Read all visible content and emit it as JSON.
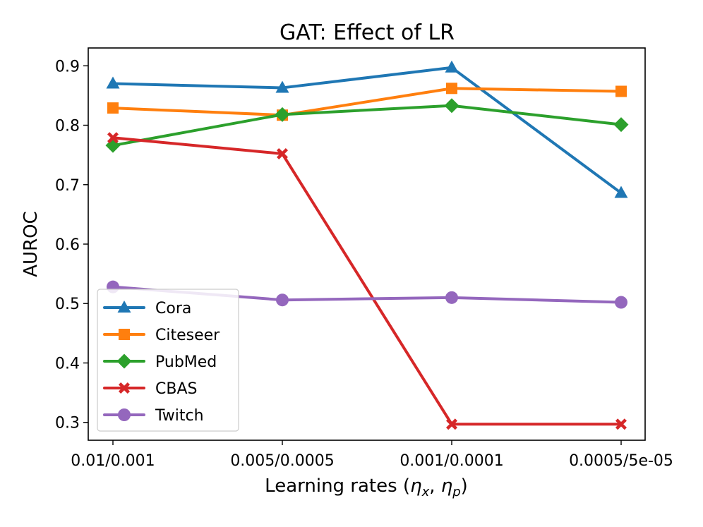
{
  "chart_data": {
    "type": "line",
    "title": "GAT: Effect of LR",
    "xlabel": "Learning rates (",
    "xlabel_sym1": "η",
    "xlabel_sub1": "x",
    "xlabel_sep": ",  ",
    "xlabel_sym2": "η",
    "xlabel_sub2": "p",
    "xlabel_close": ")",
    "ylabel": "AUROC",
    "categories": [
      "0.01/0.001",
      "0.005/0.0005",
      "0.001/0.0001",
      "0.0005/5e-05"
    ],
    "ylim": [
      0.27,
      0.93
    ],
    "yticks": [
      0.3,
      0.4,
      0.5,
      0.6,
      0.7,
      0.8,
      0.9
    ],
    "ytick_labels": [
      "0.3",
      "0.4",
      "0.5",
      "0.6",
      "0.7",
      "0.8",
      "0.9"
    ],
    "legend_position": "lower-left",
    "grid": false,
    "series": [
      {
        "name": "Cora",
        "color": "#1f77b4",
        "marker": "triangle",
        "values": [
          0.87,
          0.863,
          0.897,
          0.686
        ]
      },
      {
        "name": "Citeseer",
        "color": "#ff7f0e",
        "marker": "square",
        "values": [
          0.829,
          0.817,
          0.862,
          0.857
        ]
      },
      {
        "name": "PubMed",
        "color": "#2ca02c",
        "marker": "diamond",
        "values": [
          0.766,
          0.818,
          0.833,
          0.801
        ]
      },
      {
        "name": "CBAS",
        "color": "#d62728",
        "marker": "x",
        "values": [
          0.779,
          0.752,
          0.297,
          0.297
        ]
      },
      {
        "name": "Twitch",
        "color": "#9467bd",
        "marker": "circle",
        "values": [
          0.528,
          0.506,
          0.51,
          0.502
        ]
      }
    ]
  }
}
